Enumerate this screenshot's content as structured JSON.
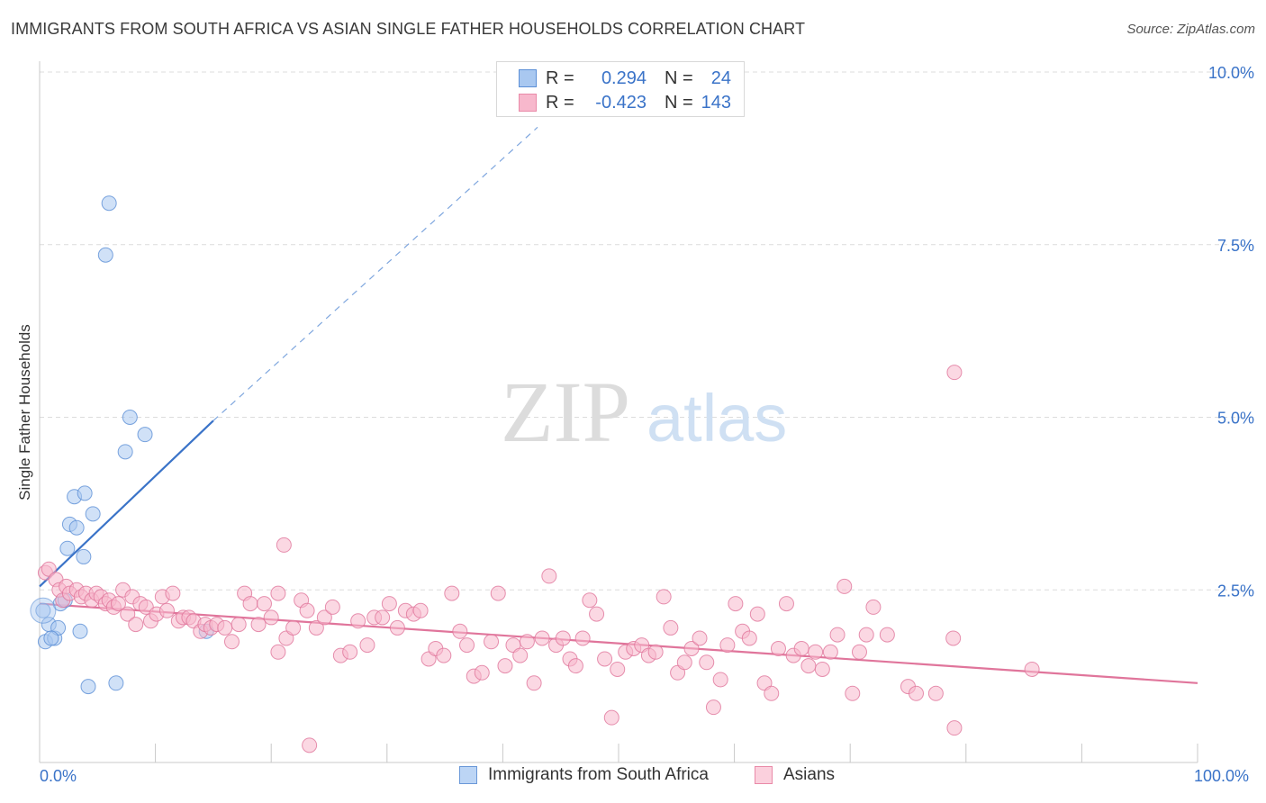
{
  "header": {
    "title": "IMMIGRANTS FROM SOUTH AFRICA VS ASIAN SINGLE FATHER HOUSEHOLDS CORRELATION CHART",
    "source": "Source: ZipAtlas.com"
  },
  "legend": {
    "rows": [
      {
        "r_label": "R =",
        "r_value": "0.294",
        "n_label": "N =",
        "n_value": "24",
        "color": "#a9c8f0",
        "border": "#5b8fd6"
      },
      {
        "r_label": "R =",
        "r_value": "-0.423",
        "n_label": "N =",
        "n_value": "143",
        "color": "#f7b8cc",
        "border": "#e98aa8"
      }
    ]
  },
  "bottom_legend": [
    {
      "label": "Immigrants from South Africa",
      "color": "#bcd5f5",
      "border": "#6a98d8"
    },
    {
      "label": "Asians",
      "color": "#fbd0dd",
      "border": "#e98aa8"
    }
  ],
  "watermark": {
    "zip": "ZIP",
    "atlas": "atlas"
  },
  "chart_data": {
    "type": "scatter",
    "title": "IMMIGRANTS FROM SOUTH AFRICA VS ASIAN SINGLE FATHER HOUSEHOLDS CORRELATION CHART",
    "xlabel": "",
    "ylabel": "Single Father Households",
    "xlim": [
      0,
      100
    ],
    "ylim": [
      0,
      10
    ],
    "x_tick_labels": [
      "0.0%",
      "100.0%"
    ],
    "y_ticks": [
      2.5,
      5.0,
      7.5,
      10.0
    ],
    "y_tick_labels": [
      "2.5%",
      "5.0%",
      "7.5%",
      "10.0%"
    ],
    "grid": "horizontal dashed",
    "series": [
      {
        "name": "Immigrants from South Africa",
        "color": "#5b8fd6",
        "fill": "#a9c8f0",
        "points": [
          [
            0.3,
            2.2
          ],
          [
            0.5,
            1.75
          ],
          [
            0.8,
            2.0
          ],
          [
            1.3,
            1.8
          ],
          [
            1.6,
            1.95
          ],
          [
            1.8,
            2.3
          ],
          [
            2.2,
            2.35
          ],
          [
            2.4,
            3.1
          ],
          [
            2.6,
            3.45
          ],
          [
            3.0,
            3.85
          ],
          [
            3.2,
            3.4
          ],
          [
            3.5,
            1.9
          ],
          [
            3.8,
            2.98
          ],
          [
            3.9,
            3.9
          ],
          [
            4.2,
            1.1
          ],
          [
            4.6,
            3.6
          ],
          [
            5.7,
            7.35
          ],
          [
            6.0,
            8.1
          ],
          [
            6.6,
            1.15
          ],
          [
            7.4,
            4.5
          ],
          [
            7.8,
            5.0
          ],
          [
            9.1,
            4.75
          ],
          [
            14.4,
            1.9
          ],
          [
            1.0,
            1.8
          ]
        ],
        "trend": {
          "x": [
            0,
            15
          ],
          "y": [
            2.55,
            4.95
          ],
          "dashed_extension_to": [
            43,
            9.2
          ]
        }
      },
      {
        "name": "Asians",
        "color": "#e0759b",
        "fill": "#f7b8cc",
        "points": [
          [
            0.5,
            2.75
          ],
          [
            0.8,
            2.8
          ],
          [
            1.4,
            2.65
          ],
          [
            1.7,
            2.5
          ],
          [
            2.0,
            2.35
          ],
          [
            2.3,
            2.55
          ],
          [
            2.6,
            2.45
          ],
          [
            3.2,
            2.5
          ],
          [
            3.6,
            2.4
          ],
          [
            4.0,
            2.45
          ],
          [
            4.5,
            2.35
          ],
          [
            4.9,
            2.45
          ],
          [
            5.3,
            2.4
          ],
          [
            5.7,
            2.3
          ],
          [
            6.0,
            2.35
          ],
          [
            6.4,
            2.25
          ],
          [
            6.8,
            2.3
          ],
          [
            7.2,
            2.5
          ],
          [
            7.6,
            2.15
          ],
          [
            8.0,
            2.4
          ],
          [
            8.3,
            2.0
          ],
          [
            8.7,
            2.3
          ],
          [
            9.2,
            2.25
          ],
          [
            9.6,
            2.05
          ],
          [
            10.1,
            2.15
          ],
          [
            10.6,
            2.4
          ],
          [
            11.0,
            2.2
          ],
          [
            11.5,
            2.45
          ],
          [
            12.0,
            2.05
          ],
          [
            12.4,
            2.1
          ],
          [
            12.9,
            2.1
          ],
          [
            13.3,
            2.05
          ],
          [
            13.9,
            1.9
          ],
          [
            14.3,
            2.0
          ],
          [
            14.8,
            1.95
          ],
          [
            15.3,
            2.0
          ],
          [
            16.0,
            1.95
          ],
          [
            16.6,
            1.75
          ],
          [
            17.2,
            2.0
          ],
          [
            17.7,
            2.45
          ],
          [
            18.2,
            2.3
          ],
          [
            18.9,
            2.0
          ],
          [
            19.4,
            2.3
          ],
          [
            20.0,
            2.1
          ],
          [
            20.6,
            2.45
          ],
          [
            21.3,
            1.8
          ],
          [
            21.9,
            1.95
          ],
          [
            22.6,
            2.35
          ],
          [
            23.1,
            2.2
          ],
          [
            23.9,
            1.95
          ],
          [
            24.6,
            2.1
          ],
          [
            25.3,
            2.25
          ],
          [
            26.0,
            1.55
          ],
          [
            26.8,
            1.6
          ],
          [
            27.5,
            2.05
          ],
          [
            28.3,
            1.7
          ],
          [
            28.9,
            2.1
          ],
          [
            29.6,
            2.1
          ],
          [
            30.2,
            2.3
          ],
          [
            30.9,
            1.95
          ],
          [
            31.6,
            2.2
          ],
          [
            32.3,
            2.15
          ],
          [
            32.9,
            2.2
          ],
          [
            33.6,
            1.5
          ],
          [
            34.2,
            1.65
          ],
          [
            34.9,
            1.55
          ],
          [
            35.6,
            2.45
          ],
          [
            36.3,
            1.9
          ],
          [
            36.9,
            1.7
          ],
          [
            37.5,
            1.25
          ],
          [
            38.2,
            1.3
          ],
          [
            39.0,
            1.75
          ],
          [
            39.6,
            2.45
          ],
          [
            40.2,
            1.4
          ],
          [
            40.9,
            1.7
          ],
          [
            41.5,
            1.55
          ],
          [
            42.1,
            1.75
          ],
          [
            42.7,
            1.15
          ],
          [
            43.4,
            1.8
          ],
          [
            44.0,
            2.7
          ],
          [
            44.6,
            1.7
          ],
          [
            45.2,
            1.8
          ],
          [
            45.8,
            1.5
          ],
          [
            46.3,
            1.4
          ],
          [
            46.9,
            1.8
          ],
          [
            47.5,
            2.35
          ],
          [
            48.1,
            2.15
          ],
          [
            48.8,
            1.5
          ],
          [
            49.4,
            0.65
          ],
          [
            49.9,
            1.35
          ],
          [
            50.6,
            1.6
          ],
          [
            51.3,
            1.65
          ],
          [
            52.0,
            1.7
          ],
          [
            52.6,
            1.55
          ],
          [
            53.2,
            1.6
          ],
          [
            53.9,
            2.4
          ],
          [
            54.5,
            1.95
          ],
          [
            55.1,
            1.3
          ],
          [
            55.7,
            1.45
          ],
          [
            56.3,
            1.65
          ],
          [
            57.0,
            1.8
          ],
          [
            57.6,
            1.45
          ],
          [
            58.2,
            0.8
          ],
          [
            58.8,
            1.2
          ],
          [
            59.4,
            1.7
          ],
          [
            60.1,
            2.3
          ],
          [
            60.7,
            1.9
          ],
          [
            61.3,
            1.8
          ],
          [
            62.0,
            2.15
          ],
          [
            62.6,
            1.15
          ],
          [
            63.2,
            1.0
          ],
          [
            63.8,
            1.65
          ],
          [
            64.5,
            2.3
          ],
          [
            65.1,
            1.55
          ],
          [
            65.8,
            1.65
          ],
          [
            66.4,
            1.4
          ],
          [
            67.0,
            1.6
          ],
          [
            67.6,
            1.35
          ],
          [
            68.3,
            1.6
          ],
          [
            68.9,
            1.85
          ],
          [
            69.5,
            2.55
          ],
          [
            70.2,
            1.0
          ],
          [
            70.8,
            1.6
          ],
          [
            71.4,
            1.85
          ],
          [
            72.0,
            2.25
          ],
          [
            73.2,
            1.85
          ],
          [
            75.0,
            1.1
          ],
          [
            75.7,
            1.0
          ],
          [
            77.4,
            1.0
          ],
          [
            79.0,
            0.5
          ],
          [
            78.9,
            1.8
          ],
          [
            79.0,
            5.65
          ],
          [
            85.7,
            1.35
          ],
          [
            23.3,
            0.25
          ],
          [
            20.6,
            1.6
          ],
          [
            21.1,
            3.15
          ]
        ],
        "trend": {
          "x": [
            0,
            100
          ],
          "y": [
            2.3,
            1.15
          ]
        }
      }
    ]
  }
}
